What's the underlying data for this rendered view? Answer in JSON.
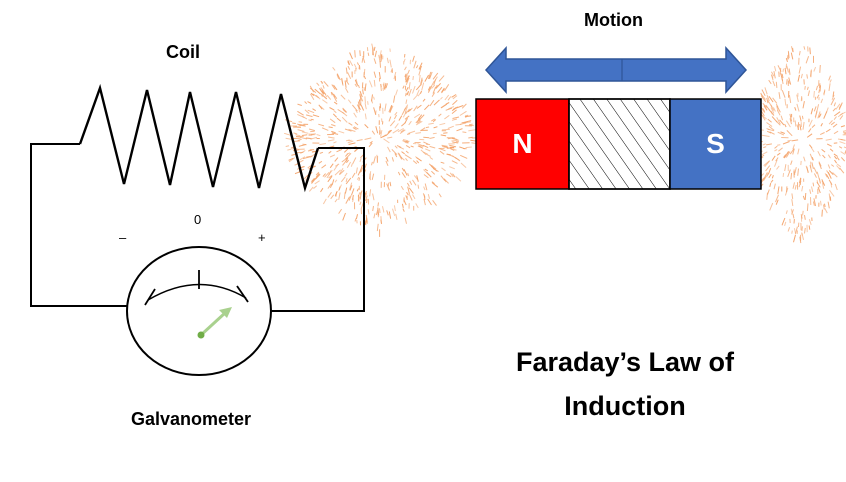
{
  "labels": {
    "coil": "Coil",
    "motion": "Motion",
    "galvanometer": "Galvanometer",
    "scale_minus": "–",
    "scale_zero": "0",
    "scale_plus": "+",
    "title": "Faraday’s Law of Induction"
  },
  "magnet": {
    "north_label": "N",
    "south_label": "S",
    "north_color": "#ff0000",
    "south_color": "#4472c4",
    "border_color": "#000000"
  },
  "arrow": {
    "color": "#4472c4",
    "outline": "#2f5597",
    "direction": "both"
  },
  "field_particles": {
    "color": "#f4a46c"
  },
  "needle": {
    "color": "#a9d18e",
    "pivot_color": "#70ad47",
    "deflection": "positive"
  }
}
